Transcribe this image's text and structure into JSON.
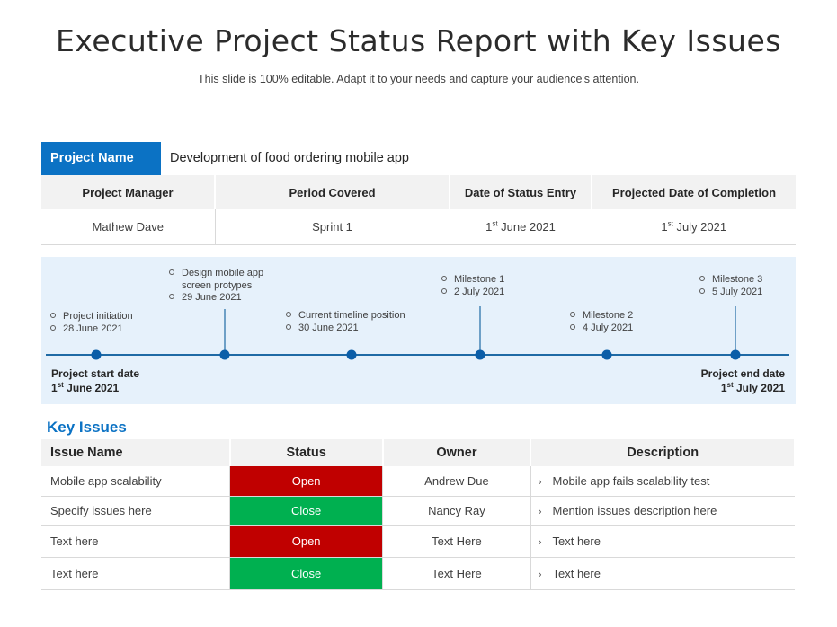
{
  "header": {
    "title": "Executive Project Status Report with Key Issues",
    "subtitle": "This slide is 100% editable. Adapt it to your needs and capture your audience's attention."
  },
  "project": {
    "name_label": "Project Name",
    "name_value": "Development of food ordering mobile app",
    "columns": [
      "Project Manager",
      "Period Covered",
      "Date of Status Entry",
      "Projected Date of Completion"
    ],
    "manager": "Mathew Dave",
    "period": "Sprint 1",
    "status_entry": {
      "day": "1",
      "sup": "st",
      "rest": " June 2021"
    },
    "completion": {
      "day": "1",
      "sup": "st",
      "rest": " July 2021"
    }
  },
  "timeline": {
    "start": {
      "label": "Project start date",
      "day": "1",
      "sup": "st",
      "rest": " June 2021"
    },
    "end": {
      "label": "Project end date",
      "day": "1",
      "sup": "st",
      "rest": " July 2021"
    },
    "milestones": [
      {
        "lines": [
          "Project initiation",
          "28 June 2021"
        ]
      },
      {
        "lines": [
          "Design mobile app",
          "screen protypes",
          "29 June 2021"
        ]
      },
      {
        "lines": [
          "Current timeline position",
          "30 June 2021"
        ]
      },
      {
        "lines": [
          "Milestone 1",
          "2 July 2021"
        ]
      },
      {
        "lines": [
          "Milestone 2",
          "4 July 2021"
        ]
      },
      {
        "lines": [
          "Milestone 3",
          "5 July 2021"
        ]
      }
    ],
    "line_color": "#1f6aa5",
    "dot_color": "#0b5ea8"
  },
  "key_issues": {
    "title": "Key Issues",
    "columns": [
      "Issue Name",
      "Status",
      "Owner",
      "Description"
    ],
    "status_colors": {
      "Open": "#c00000",
      "Close": "#00b050"
    },
    "rows": [
      {
        "name": "Mobile app scalability",
        "status": "Open",
        "owner": "Andrew Due",
        "description": "Mobile app fails scalability test"
      },
      {
        "name": "Specify issues here",
        "status": "Close",
        "owner": "Nancy Ray",
        "description": "Mention issues description here"
      },
      {
        "name": "Text here",
        "status": "Open",
        "owner": "Text Here",
        "description": "Text here"
      },
      {
        "name": "Text here",
        "status": "Close",
        "owner": "Text Here",
        "description": "Text here"
      }
    ],
    "chevron_icon": "chevron-right-icon"
  }
}
